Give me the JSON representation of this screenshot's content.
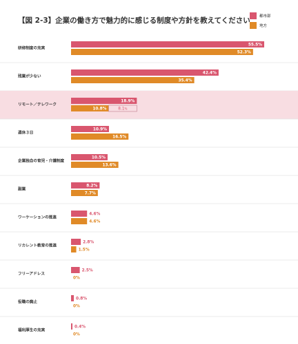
{
  "chart_data": {
    "type": "bar",
    "orientation": "horizontal",
    "title": "【図 2-3】企業の働き方で魅力的に感じる制度や方針を教えてください",
    "unit": "%",
    "xlim": [
      0,
      60
    ],
    "grid": false,
    "legend_placement": "top-right",
    "categories": [
      "研修制度の充実",
      "残業が少ない",
      "リモート／テレワーク",
      "週休３日",
      "企業独自の育児・介護制度",
      "副業",
      "ワーケーションの推進",
      "リカレント教育の推進",
      "フリーアドレス",
      "役職の廃止",
      "福利厚生の充実"
    ],
    "series": [
      {
        "name": "都市部",
        "color": "#d9566e",
        "values": [
          55.5,
          42.4,
          18.9,
          10.9,
          10.5,
          8.2,
          4.6,
          2.8,
          2.5,
          0.8,
          0.4
        ]
      },
      {
        "name": "地方",
        "color": "#e08a27",
        "values": [
          52.3,
          35.4,
          10.8,
          16.5,
          13.6,
          7.7,
          4.6,
          1.5,
          0,
          0,
          0
        ]
      }
    ],
    "highlight": {
      "category": "リモート／テレワーク",
      "color": "#f8dde2"
    },
    "annotation": {
      "category": "リモート／テレワーク",
      "text": "8.1",
      "unit": "%"
    }
  }
}
